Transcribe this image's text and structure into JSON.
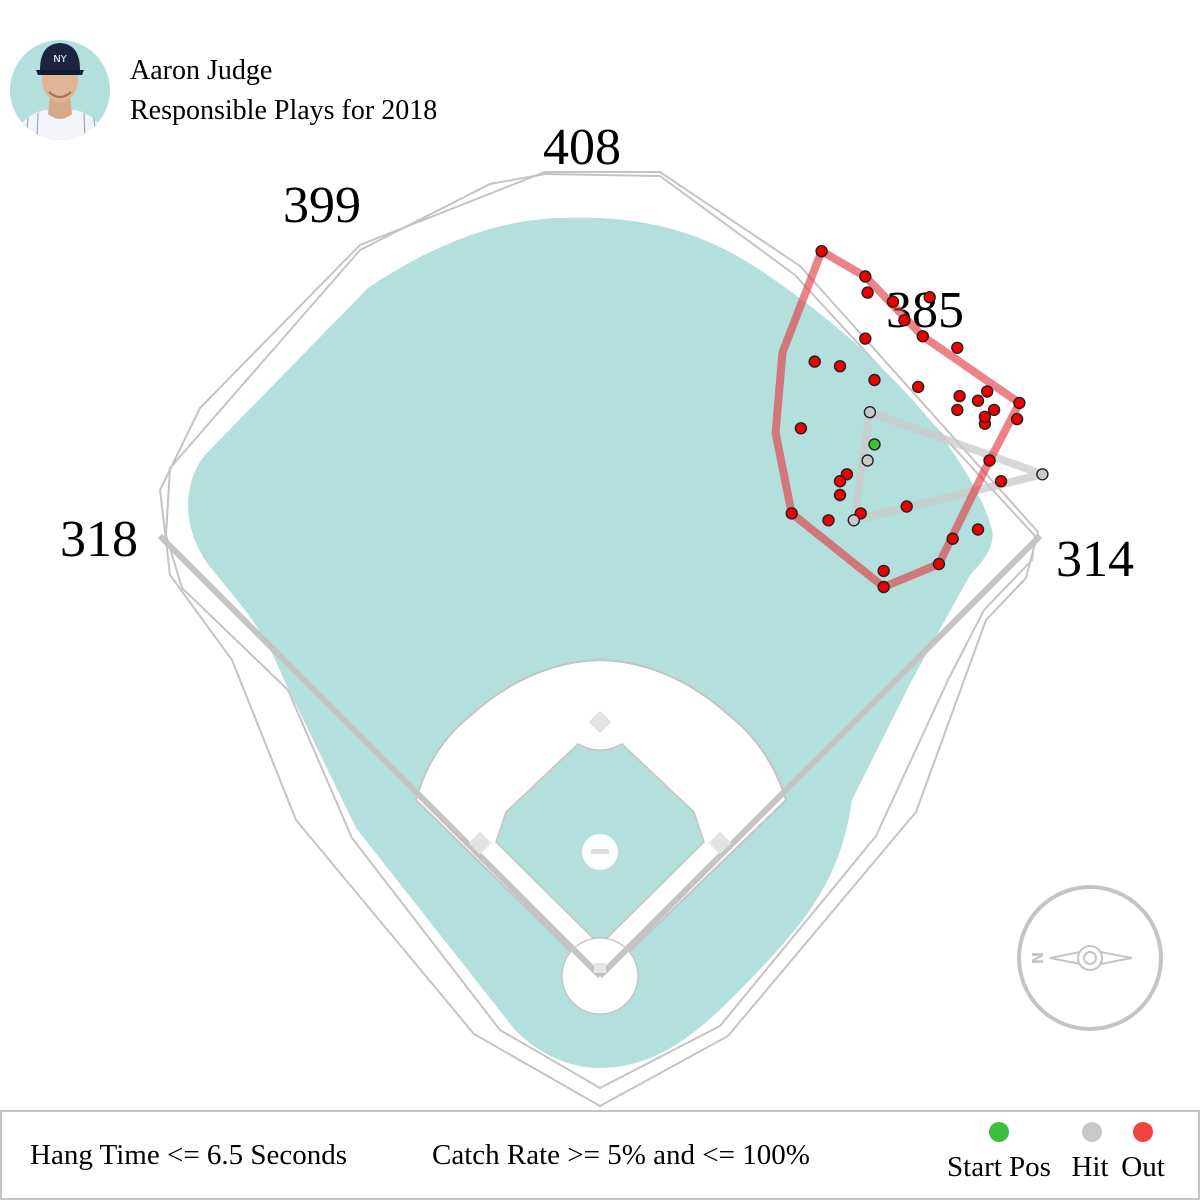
{
  "header": {
    "player_name": "Aaron Judge",
    "subtitle": "Responsible Plays for 2018",
    "avatar_icon": "player-headshot-icon"
  },
  "field": {
    "distance_labels": {
      "left_field": "318",
      "left_center": "399",
      "center": "408",
      "right_center": "385",
      "right_field": "314"
    },
    "grass_color": "#b3dfdc",
    "line_color": "#c4c4c4",
    "compass_icon": "compass-icon",
    "compass_letter": "N"
  },
  "filters": {
    "hang_time": "Hang Time <= 6.5 Seconds",
    "catch_rate": "Catch Rate >= 5% and <= 100%"
  },
  "legend": {
    "start_pos": {
      "label": "Start Pos",
      "color": "#3cbf3c"
    },
    "hit": {
      "label": "Hit",
      "color": "#c9c9c9"
    },
    "out": {
      "label": "Out",
      "color": "#f04444"
    }
  },
  "chart_data": {
    "type": "scatter",
    "start_position": {
      "x": 0.5,
      "y": 0.2
    },
    "hits": [
      {
        "x": 0.3,
        "y": 1.6
      },
      {
        "x": 0.2,
        "y": -0.5
      },
      {
        "x": -0.4,
        "y": -3.1
      },
      {
        "x": 7.8,
        "y": -1.1
      }
    ],
    "outs": [
      {
        "x": 0.2,
        "y": 6.8
      },
      {
        "x": 0.1,
        "y": 7.5
      },
      {
        "x": -1.8,
        "y": 8.6
      },
      {
        "x": 0.1,
        "y": 4.8
      },
      {
        "x": 1.3,
        "y": 6.4
      },
      {
        "x": 1.8,
        "y": 5.6
      },
      {
        "x": 2.9,
        "y": 6.6
      },
      {
        "x": 2.6,
        "y": 4.9
      },
      {
        "x": 4.1,
        "y": 4.4
      },
      {
        "x": 2.4,
        "y": 2.7
      },
      {
        "x": 4.2,
        "y": 2.3
      },
      {
        "x": 4.1,
        "y": 1.7
      },
      {
        "x": 5.0,
        "y": 2.1
      },
      {
        "x": 5.4,
        "y": 2.5
      },
      {
        "x": 5.3,
        "y": 1.1
      },
      {
        "x": 5.3,
        "y": 1.4
      },
      {
        "x": 5.7,
        "y": 1.7
      },
      {
        "x": 6.8,
        "y": 2.0
      },
      {
        "x": 6.7,
        "y": 1.3
      },
      {
        "x": 5.5,
        "y": -0.5
      },
      {
        "x": 6.0,
        "y": -1.4
      },
      {
        "x": 5.0,
        "y": -3.5
      },
      {
        "x": 3.9,
        "y": -3.9
      },
      {
        "x": 3.3,
        "y": -5.0
      },
      {
        "x": 0.9,
        "y": -5.3
      },
      {
        "x": 0.9,
        "y": -6.0
      },
      {
        "x": -0.7,
        "y": -1.1
      },
      {
        "x": -1.0,
        "y": -2.0
      },
      {
        "x": -1.5,
        "y": -3.1
      },
      {
        "x": -0.1,
        "y": -2.8
      },
      {
        "x": 1.9,
        "y": -2.5
      },
      {
        "x": -3.1,
        "y": -2.8
      },
      {
        "x": -1.0,
        "y": -1.4
      },
      {
        "x": -2.7,
        "y": 0.9
      },
      {
        "x": -2.1,
        "y": 3.8
      },
      {
        "x": -1.0,
        "y": 3.6
      },
      {
        "x": 0.5,
        "y": 3.0
      }
    ],
    "out_hull": [
      {
        "x": 0.1,
        "y": 7.5
      },
      {
        "x": 2.6,
        "y": 4.9
      },
      {
        "x": 6.8,
        "y": 2.0
      },
      {
        "x": 5.3,
        "y": -0.9
      },
      {
        "x": 3.3,
        "y": -5.0
      },
      {
        "x": 0.9,
        "y": -6.0
      },
      {
        "x": -3.1,
        "y": -2.8
      },
      {
        "x": -3.8,
        "y": 0.7
      },
      {
        "x": -3.5,
        "y": 4.2
      },
      {
        "x": -1.8,
        "y": 8.6
      }
    ],
    "hit_hull": [
      {
        "x": 0.3,
        "y": 1.6
      },
      {
        "x": 7.8,
        "y": -1.1
      },
      {
        "x": -0.4,
        "y": -3.1
      }
    ]
  }
}
